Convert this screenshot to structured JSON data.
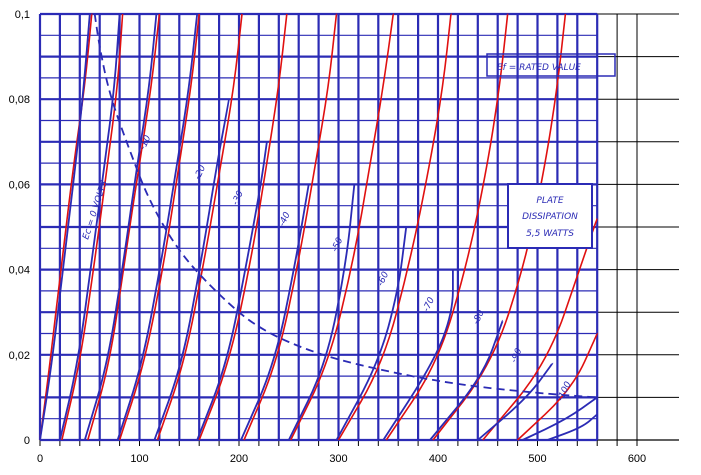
{
  "chart_data": {
    "type": "line",
    "xlim": [
      0,
      600
    ],
    "ylim": [
      0,
      0.1
    ],
    "x_ticks": [
      "0",
      "100",
      "200",
      "300",
      "400",
      "500",
      "600"
    ],
    "y_ticks": [
      "0",
      "0,02",
      "0,04",
      "0,06",
      "0,08",
      "0,1"
    ],
    "grid": true,
    "legend": "none",
    "annotations": {
      "ef_label": "Ef = RATED VALUE",
      "plate_line1": "PLATE",
      "plate_line2": "DISSIPATION",
      "plate_line3": "5,5 WATTS",
      "ec_zero_label": "Ec = 0 VOLTS",
      "curve_labels": [
        "-10",
        "-20",
        "-30",
        "-40",
        "-50",
        "-60",
        "-70",
        "-80",
        "-90",
        "-100"
      ]
    },
    "series": [
      {
        "color": "#e01010",
        "points": [
          [
            0,
            0
          ],
          [
            10,
            0.018
          ],
          [
            22,
            0.042
          ],
          [
            34,
            0.065
          ],
          [
            45,
            0.083
          ],
          [
            52,
            0.1
          ]
        ]
      },
      {
        "color": "#e01010",
        "points": [
          [
            22,
            0
          ],
          [
            40,
            0.018
          ],
          [
            55,
            0.042
          ],
          [
            68,
            0.065
          ],
          [
            78,
            0.083
          ],
          [
            83,
            0.1
          ]
        ]
      },
      {
        "color": "#e01010",
        "points": [
          [
            48,
            0
          ],
          [
            70,
            0.018
          ],
          [
            85,
            0.042
          ],
          [
            100,
            0.065
          ],
          [
            112,
            0.083
          ],
          [
            120,
            0.1
          ]
        ]
      },
      {
        "color": "#e01010",
        "points": [
          [
            80,
            0
          ],
          [
            105,
            0.018
          ],
          [
            125,
            0.042
          ],
          [
            140,
            0.065
          ],
          [
            152,
            0.083
          ],
          [
            160,
            0.1
          ]
        ]
      },
      {
        "color": "#e01010",
        "points": [
          [
            118,
            0
          ],
          [
            145,
            0.018
          ],
          [
            165,
            0.042
          ],
          [
            182,
            0.065
          ],
          [
            195,
            0.083
          ],
          [
            203,
            0.1
          ]
        ]
      },
      {
        "color": "#e01010",
        "points": [
          [
            160,
            0
          ],
          [
            190,
            0.018
          ],
          [
            212,
            0.042
          ],
          [
            228,
            0.065
          ],
          [
            240,
            0.083
          ],
          [
            248,
            0.1
          ]
        ]
      },
      {
        "color": "#e01010",
        "points": [
          [
            205,
            0
          ],
          [
            238,
            0.018
          ],
          [
            260,
            0.042
          ],
          [
            277,
            0.065
          ],
          [
            290,
            0.083
          ],
          [
            298,
            0.1
          ]
        ]
      },
      {
        "color": "#e01010",
        "points": [
          [
            252,
            0
          ],
          [
            290,
            0.018
          ],
          [
            315,
            0.042
          ],
          [
            332,
            0.065
          ],
          [
            345,
            0.083
          ],
          [
            355,
            0.1
          ]
        ]
      },
      {
        "color": "#e01010",
        "points": [
          [
            300,
            0
          ],
          [
            345,
            0.018
          ],
          [
            372,
            0.042
          ],
          [
            392,
            0.065
          ],
          [
            405,
            0.083
          ],
          [
            413,
            0.1
          ]
        ]
      },
      {
        "color": "#e01010",
        "points": [
          [
            348,
            0
          ],
          [
            400,
            0.018
          ],
          [
            430,
            0.042
          ],
          [
            450,
            0.065
          ],
          [
            462,
            0.083
          ],
          [
            470,
            0.1
          ]
        ]
      },
      {
        "color": "#e01010",
        "points": [
          [
            395,
            0
          ],
          [
            455,
            0.018
          ],
          [
            488,
            0.042
          ],
          [
            508,
            0.065
          ],
          [
            520,
            0.083
          ],
          [
            528,
            0.1
          ]
        ]
      },
      {
        "color": "#e01010",
        "points": [
          [
            445,
            0
          ],
          [
            510,
            0.018
          ],
          [
            545,
            0.042
          ],
          [
            560,
            0.052
          ]
        ]
      },
      {
        "color": "#e01010",
        "points": [
          [
            480,
            0
          ],
          [
            535,
            0.012
          ],
          [
            560,
            0.025
          ]
        ]
      },
      {
        "color": "#2b2bb5",
        "points": [
          [
            0,
            0
          ],
          [
            12,
            0.018
          ],
          [
            24,
            0.042
          ],
          [
            36,
            0.065
          ],
          [
            44,
            0.083
          ],
          [
            50,
            0.1
          ]
        ]
      },
      {
        "color": "#2b2bb5",
        "points": [
          [
            20,
            0
          ],
          [
            38,
            0.018
          ],
          [
            52,
            0.042
          ],
          [
            65,
            0.065
          ],
          [
            75,
            0.083
          ],
          [
            80,
            0.1
          ]
        ]
      },
      {
        "color": "#2b2bb5",
        "points": [
          [
            45,
            0
          ],
          [
            68,
            0.018
          ],
          [
            84,
            0.042
          ],
          [
            98,
            0.065
          ],
          [
            110,
            0.083
          ],
          [
            117,
            0.1
          ]
        ]
      },
      {
        "color": "#2b2bb5",
        "points": [
          [
            78,
            0
          ],
          [
            103,
            0.018
          ],
          [
            122,
            0.042
          ],
          [
            138,
            0.065
          ],
          [
            150,
            0.083
          ],
          [
            158,
            0.1
          ]
        ]
      },
      {
        "color": "#2b2bb5",
        "points": [
          [
            115,
            0
          ],
          [
            143,
            0.018
          ],
          [
            162,
            0.042
          ],
          [
            178,
            0.065
          ],
          [
            190,
            0.08
          ]
        ]
      },
      {
        "color": "#2b2bb5",
        "points": [
          [
            158,
            0
          ],
          [
            188,
            0.018
          ],
          [
            208,
            0.042
          ],
          [
            222,
            0.06
          ],
          [
            228,
            0.07
          ]
        ]
      },
      {
        "color": "#2b2bb5",
        "points": [
          [
            202,
            0
          ],
          [
            236,
            0.018
          ],
          [
            257,
            0.042
          ],
          [
            270,
            0.06
          ]
        ]
      },
      {
        "color": "#2b2bb5",
        "points": [
          [
            250,
            0
          ],
          [
            288,
            0.018
          ],
          [
            308,
            0.042
          ],
          [
            316,
            0.06
          ]
        ]
      },
      {
        "color": "#2b2bb5",
        "points": [
          [
            298,
            0
          ],
          [
            340,
            0.018
          ],
          [
            360,
            0.035
          ],
          [
            368,
            0.05
          ]
        ]
      },
      {
        "color": "#2b2bb5",
        "points": [
          [
            345,
            0
          ],
          [
            395,
            0.018
          ],
          [
            415,
            0.03
          ],
          [
            415,
            0.04
          ]
        ]
      },
      {
        "color": "#2b2bb5",
        "points": [
          [
            392,
            0
          ],
          [
            445,
            0.015
          ],
          [
            465,
            0.028
          ]
        ]
      },
      {
        "color": "#2b2bb5",
        "points": [
          [
            440,
            0
          ],
          [
            490,
            0.01
          ],
          [
            515,
            0.018
          ]
        ]
      },
      {
        "color": "#2b2bb5",
        "points": [
          [
            485,
            0
          ],
          [
            530,
            0.005
          ],
          [
            560,
            0.01
          ]
        ]
      },
      {
        "color": "#2b2bb5",
        "points": [
          [
            510,
            0
          ],
          [
            545,
            0.003
          ],
          [
            560,
            0.006
          ]
        ]
      },
      {
        "color": "#2b2bb5",
        "dashed": true,
        "points": [
          [
            55,
            0.1
          ],
          [
            60,
            0.092
          ],
          [
            70,
            0.081
          ],
          [
            90,
            0.068
          ],
          [
            110,
            0.056
          ],
          [
            140,
            0.044
          ],
          [
            180,
            0.034
          ],
          [
            220,
            0.026
          ],
          [
            280,
            0.02
          ],
          [
            350,
            0.016
          ],
          [
            420,
            0.013
          ],
          [
            500,
            0.011
          ],
          [
            560,
            0.01
          ]
        ]
      }
    ]
  }
}
